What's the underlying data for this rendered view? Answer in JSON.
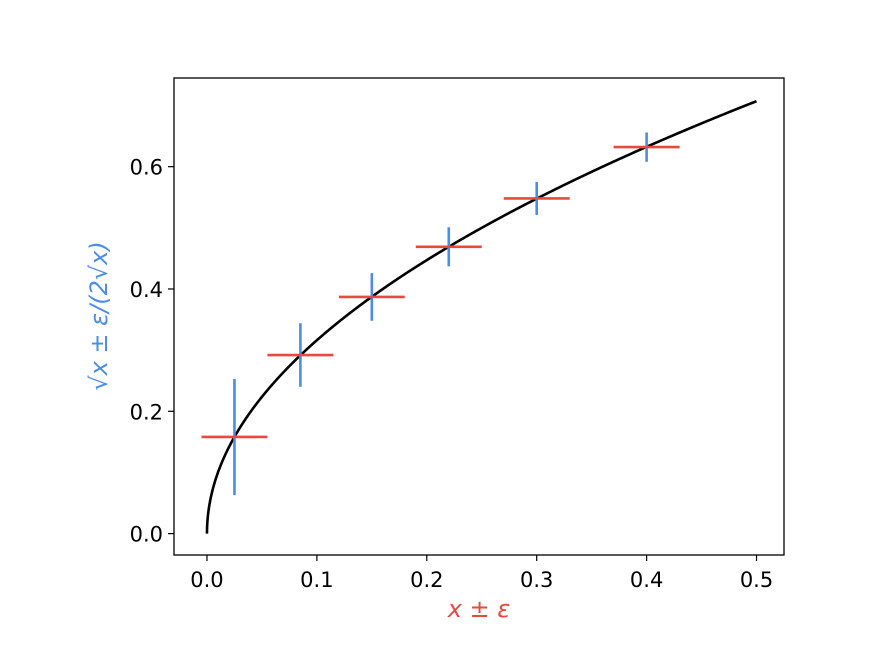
{
  "chart_data": {
    "type": "scatter",
    "xlabel": "x ± ε",
    "ylabel": "√x ± ε/(2√x)",
    "xlim": [
      -0.03,
      0.525
    ],
    "ylim": [
      -0.035,
      0.745
    ],
    "xticks": [
      "0.0",
      "0.1",
      "0.2",
      "0.3",
      "0.4",
      "0.5"
    ],
    "yticks": [
      "0.0",
      "0.2",
      "0.4",
      "0.6"
    ],
    "grid": false,
    "curve": {
      "function": "sqrt(x)",
      "x_range": [
        0,
        0.5
      ],
      "color": "#000000"
    },
    "series": [
      {
        "x": [
          0.025,
          0.085,
          0.15,
          0.22,
          0.3,
          0.4
        ],
        "y": [
          0.158,
          0.292,
          0.387,
          0.469,
          0.548,
          0.632
        ],
        "xerr": [
          0.03,
          0.03,
          0.03,
          0.03,
          0.03,
          0.03
        ],
        "yerr": [
          0.095,
          0.052,
          0.039,
          0.032,
          0.027,
          0.024
        ]
      }
    ],
    "colors": {
      "xerr": "#e8483d",
      "yerr": "#4a8ce8",
      "xlabel": "#e8483d",
      "ylabel": "#4a8ce8",
      "curve": "#000000"
    }
  }
}
